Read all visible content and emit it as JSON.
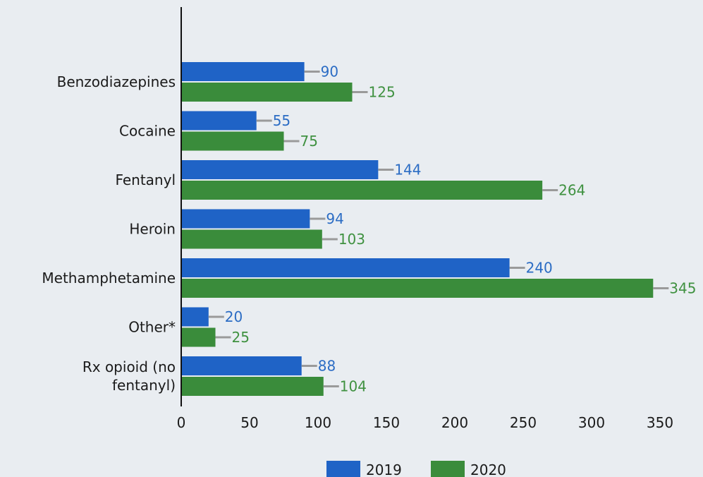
{
  "chart_data": {
    "type": "bar",
    "orientation": "horizontal",
    "categories": [
      [
        "Benzodiazepines"
      ],
      [
        "Cocaine"
      ],
      [
        "Fentanyl"
      ],
      [
        "Heroin"
      ],
      [
        "Methamphetamine"
      ],
      [
        "Other*"
      ],
      [
        "Rx opioid (no",
        "fentanyl)"
      ]
    ],
    "series": [
      {
        "name": "2019",
        "color": "#1f63c6",
        "label_color": "#2b6cc4",
        "values": [
          90,
          55,
          144,
          94,
          240,
          20,
          88
        ]
      },
      {
        "name": "2020",
        "color": "#3a8c3b",
        "label_color": "#3f9140",
        "values": [
          125,
          75,
          264,
          103,
          345,
          25,
          104
        ]
      }
    ],
    "xlim": [
      0,
      350
    ],
    "xticks": [
      "0",
      "50",
      "100",
      "150",
      "200",
      "250",
      "300",
      "350"
    ],
    "xtick_values": [
      0,
      50,
      100,
      150,
      200,
      250,
      300,
      350
    ],
    "error_bar_color": "#9a9a9a",
    "legend_placement": "bottom-center",
    "grid": false,
    "title": "",
    "xlabel": "",
    "ylabel": ""
  }
}
